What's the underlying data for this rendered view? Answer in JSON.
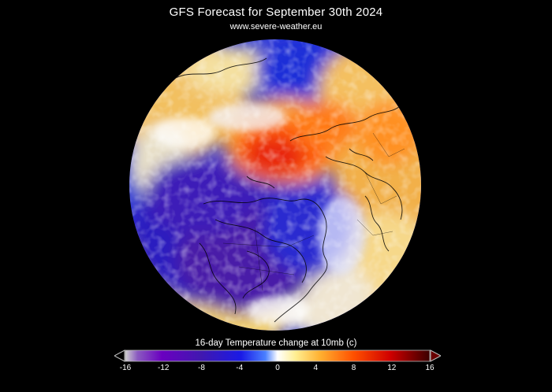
{
  "header": {
    "title": "GFS Forecast for September 30th 2024",
    "source": "www.severe-weather.eu"
  },
  "map": {
    "projection": "orthographic-north-polar",
    "field": "temperature-change",
    "features": [
      "coastlines-icon",
      "country-borders-icon",
      "state-borders-icon"
    ]
  },
  "legend": {
    "title": "16-day Temperature change at 10mb (c)",
    "min": -16,
    "max": 16,
    "ticks": [
      "-16",
      "-12",
      "-8",
      "-4",
      "0",
      "4",
      "8",
      "12",
      "16"
    ],
    "colors": [
      "#d8d8d8",
      "#7a00c8",
      "#4a1ab0",
      "#1a1ae6",
      "#2b5cff",
      "#ffffff",
      "#ffe070",
      "#ffa020",
      "#ff3000",
      "#c00000",
      "#4a0000"
    ]
  }
}
